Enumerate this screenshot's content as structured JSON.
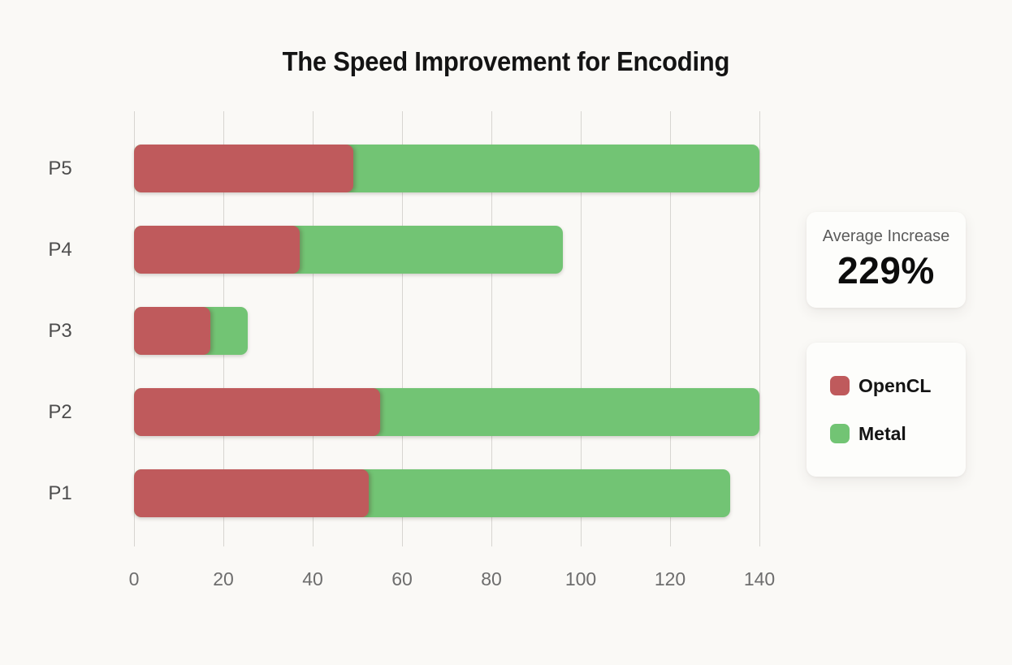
{
  "page": {
    "background_color": "#FAF9F6",
    "gridline_color": "#d7d5d1"
  },
  "chart_data": {
    "type": "bar",
    "orientation": "horizontal",
    "stacked": true,
    "title": "The Speed Improvement for Encoding",
    "categories": [
      "P1",
      "P2",
      "P3",
      "P4",
      "P5"
    ],
    "series": [
      {
        "name": "OpenCL",
        "color": "#BF5A5C",
        "values": [
          52.5,
          55,
          17,
          37,
          49
        ]
      },
      {
        "name": "Metal",
        "color": "#72C474",
        "values": [
          81,
          85,
          8.5,
          59,
          91
        ]
      }
    ],
    "x_axis": {
      "ticks": [
        0,
        20,
        40,
        60,
        80,
        100,
        120,
        140
      ],
      "min": 0,
      "max": 140
    },
    "y_axis_order_top_to_bottom": [
      "P5",
      "P4",
      "P3",
      "P2",
      "P1"
    ],
    "grid": true,
    "legend_position": "right"
  },
  "stat_card": {
    "label": "Average Increase",
    "value": "229%"
  },
  "legend": {
    "items": [
      {
        "label": "OpenCL",
        "color": "#BF5A5C"
      },
      {
        "label": "Metal",
        "color": "#72C474"
      }
    ]
  }
}
